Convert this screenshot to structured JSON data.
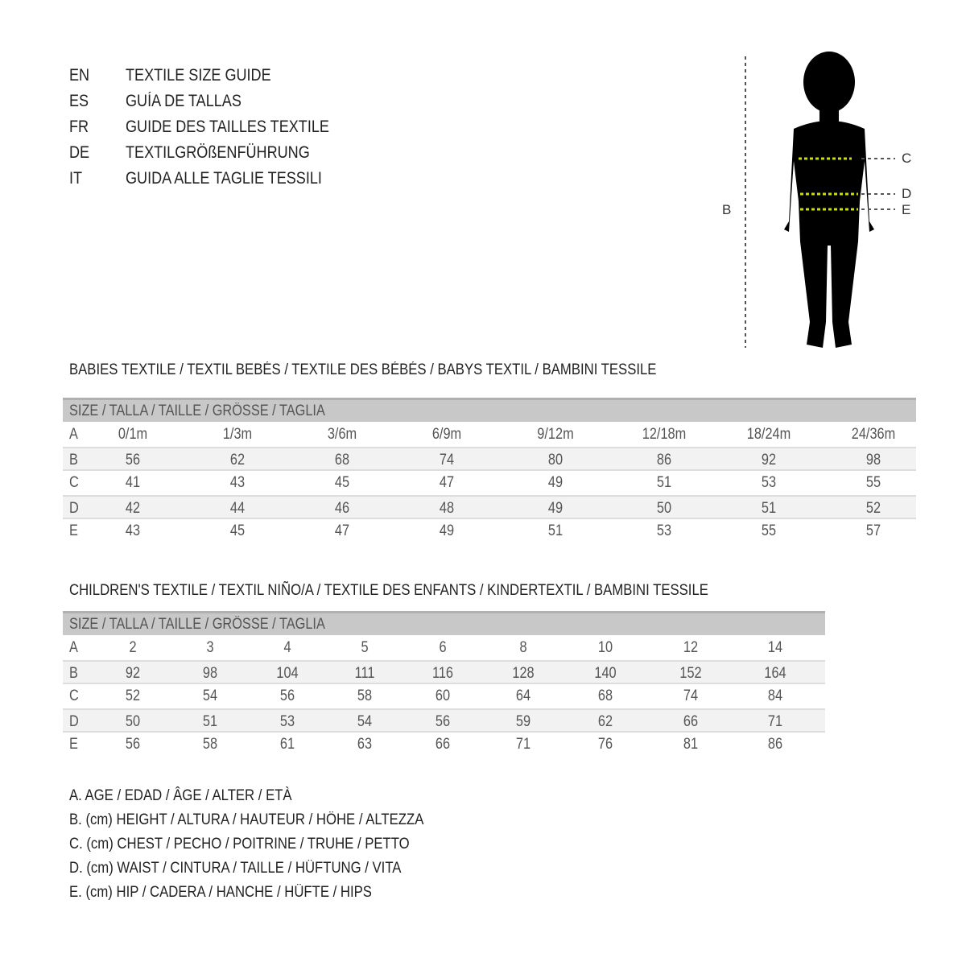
{
  "titles": [
    {
      "code": "EN",
      "text": "TEXTILE SIZE GUIDE"
    },
    {
      "code": "ES",
      "text": "GUÍA DE TALLAS"
    },
    {
      "code": "FR",
      "text": "GUIDE DES TAILLES TEXTILE"
    },
    {
      "code": "DE",
      "text": "TEXTILGRÖßENFÜHRUNG"
    },
    {
      "code": "IT",
      "text": "GUIDA ALLE TAGLIE TESSILI"
    }
  ],
  "figure": {
    "labels": {
      "height": "B",
      "chest": "C",
      "waist": "D",
      "hip": "E"
    },
    "guide_color": "#c8e000"
  },
  "babies": {
    "title": "BABIES TEXTILE / TEXTIL BEBÉS / TEXTILE DES BÉBÉS / BABYS TEXTIL  / BAMBINI TESSILE",
    "header": "SIZE / TALLA / TAILLE / GRÖSSE / TAGLIA",
    "rows": [
      {
        "label": "A",
        "values": [
          "0/1m",
          "1/3m",
          "3/6m",
          "6/9m",
          "9/12m",
          "12/18m",
          "18/24m",
          "24/36m"
        ]
      },
      {
        "label": "B",
        "values": [
          "56",
          "62",
          "68",
          "74",
          "80",
          "86",
          "92",
          "98"
        ]
      },
      {
        "label": "C",
        "values": [
          "41",
          "43",
          "45",
          "47",
          "49",
          "51",
          "53",
          "55"
        ]
      },
      {
        "label": "D",
        "values": [
          "42",
          "44",
          "46",
          "48",
          "49",
          "50",
          "51",
          "52"
        ]
      },
      {
        "label": "E",
        "values": [
          "43",
          "45",
          "47",
          "49",
          "51",
          "53",
          "55",
          "57"
        ]
      }
    ]
  },
  "children": {
    "title": "CHILDREN'S TEXTILE / TEXTIL NIÑO/A / TEXTILE DES ENFANTS / KINDERTEXTIL / BAMBINI TESSILE",
    "header": "SIZE / TALLA / TAILLE / GRÖSSE / TAGLIA",
    "rows": [
      {
        "label": "A",
        "values": [
          "2",
          "3",
          "4",
          "5",
          "6",
          "8",
          "10",
          "12",
          "14"
        ]
      },
      {
        "label": "B",
        "values": [
          "92",
          "98",
          "104",
          "111",
          "116",
          "128",
          "140",
          "152",
          "164"
        ]
      },
      {
        "label": "C",
        "values": [
          "52",
          "54",
          "56",
          "58",
          "60",
          "64",
          "68",
          "74",
          "84"
        ]
      },
      {
        "label": "D",
        "values": [
          "50",
          "51",
          "53",
          "54",
          "56",
          "59",
          "62",
          "66",
          "71"
        ]
      },
      {
        "label": "E",
        "values": [
          "56",
          "58",
          "61",
          "63",
          "66",
          "71",
          "76",
          "81",
          "86"
        ]
      }
    ]
  },
  "legend": [
    "A. AGE / EDAD / ÂGE / ALTER / ETÀ",
    "B. (cm) HEIGHT / ALTURA / HAUTEUR / HÖHE / ALTEZZA",
    "C. (cm) CHEST / PECHO / POITRINE / TRUHE / PETTO",
    "D. (cm) WAIST / CINTURA / TAILLE / HÜFTUNG / VITA",
    "E. (cm) HIP / CADERA / HANCHE / HÜFTE / HIPS"
  ]
}
